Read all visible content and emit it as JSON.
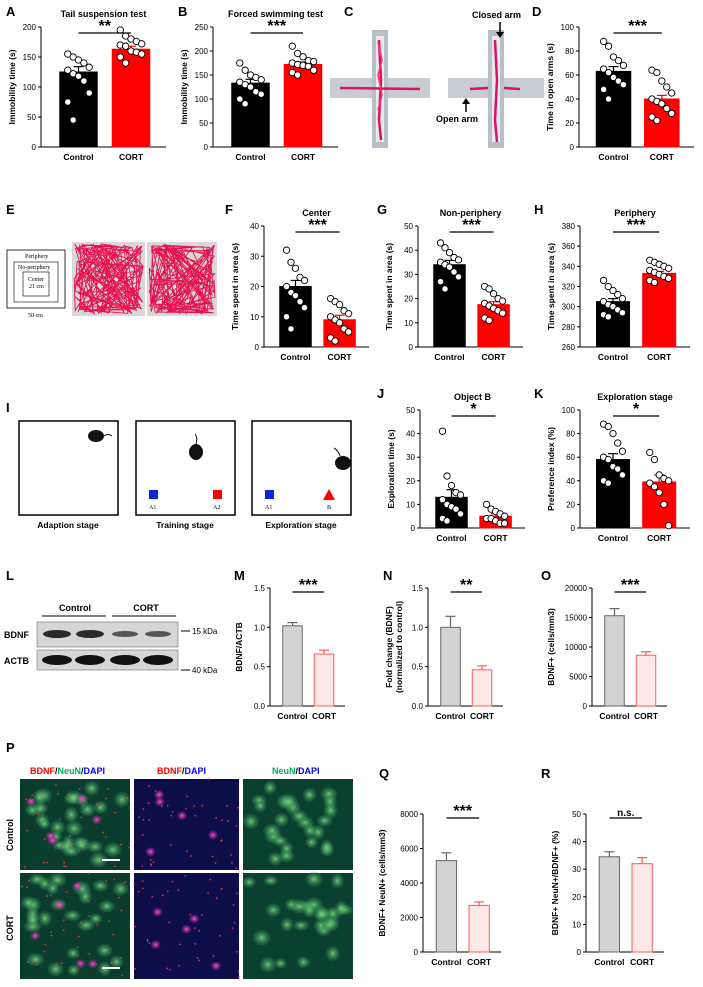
{
  "colors": {
    "control": "#000000",
    "cort": "#ff0000",
    "control_light": "#d3d3d3",
    "cort_light": "#ffe8e8",
    "cort_edge": "#ff5a5a"
  },
  "labels": {
    "A": "A",
    "B": "B",
    "C": "C",
    "D": "D",
    "E": "E",
    "F": "F",
    "G": "G",
    "H": "H",
    "I": "I",
    "J": "J",
    "K": "K",
    "L": "L",
    "M": "M",
    "N": "N",
    "O": "O",
    "P": "P",
    "Q": "Q",
    "R": "R"
  },
  "maze": {
    "closed_arm": "Closed arm",
    "open_arm": "Open arm"
  },
  "openfield": {
    "periphery": "Periphery",
    "non_periphery": "No-periphery",
    "center": "Center",
    "center_size": "21 cm",
    "arena_size": "50 cm"
  },
  "nor": {
    "stages": [
      "Adaption stage",
      "Training stage",
      "Exploration stage"
    ],
    "training_objects": [
      "A1",
      "A2"
    ],
    "exploration_objects": [
      "A1",
      "B"
    ]
  },
  "western": {
    "groups": [
      "Control",
      "CORT"
    ],
    "bands": [
      "BDNF",
      "ACTB"
    ],
    "markers": [
      "15 kDa",
      "40 kDa"
    ]
  },
  "micrographs": {
    "columns": [
      {
        "parts": [
          "BDNF",
          "/",
          "NeuN",
          "/",
          "DAPI"
        ]
      },
      {
        "parts": [
          "BDNF",
          "/",
          "DAPI"
        ]
      },
      {
        "parts": [
          "NeuN",
          "/",
          "DAPI"
        ]
      }
    ],
    "rows": [
      "Control",
      "CORT"
    ]
  },
  "chart_data": [
    {
      "id": "A",
      "type": "bar",
      "title": "Tail suspension test",
      "categories": [
        "Control",
        "CORT"
      ],
      "values": [
        125,
        163
      ],
      "sem": [
        9,
        5
      ],
      "points": [
        [
          155,
          150,
          145,
          140,
          133,
          128,
          122,
          118,
          110,
          90,
          75,
          45
        ],
        [
          195,
          185,
          180,
          176,
          172,
          170,
          168,
          160,
          158,
          155,
          150,
          140
        ]
      ],
      "ylabel": "Immobility time (s)",
      "ylim": [
        0,
        200
      ],
      "yticks": [
        0,
        50,
        100,
        150,
        200
      ],
      "sig": "**",
      "style": "solid"
    },
    {
      "id": "B",
      "type": "bar",
      "title": "Forced swimming test",
      "categories": [
        "Control",
        "CORT"
      ],
      "values": [
        133,
        172
      ],
      "sem": [
        8,
        5
      ],
      "points": [
        [
          175,
          160,
          150,
          145,
          140,
          135,
          130,
          125,
          115,
          110,
          100,
          90
        ],
        [
          210,
          195,
          188,
          180,
          178,
          175,
          172,
          170,
          168,
          160,
          155,
          150
        ]
      ],
      "ylabel": "Immobility time (s)",
      "ylim": [
        0,
        250
      ],
      "yticks": [
        0,
        50,
        100,
        150,
        200,
        250
      ],
      "sig": "***",
      "style": "solid"
    },
    {
      "id": "D",
      "type": "bar",
      "title": "",
      "categories": [
        "Control",
        "CORT"
      ],
      "values": [
        63,
        40
      ],
      "sem": [
        4,
        3
      ],
      "points": [
        [
          88,
          84,
          75,
          72,
          68,
          65,
          62,
          58,
          55,
          52,
          48,
          40
        ],
        [
          64,
          62,
          55,
          50,
          45,
          40,
          38,
          36,
          32,
          28,
          25,
          22
        ]
      ],
      "ylabel": "Time in open arms (s)",
      "ylim": [
        0,
        100
      ],
      "yticks": [
        0,
        20,
        40,
        60,
        80,
        100
      ],
      "sig": "***",
      "style": "solid"
    },
    {
      "id": "F",
      "type": "bar",
      "title": "Center",
      "categories": [
        "Control",
        "CORT"
      ],
      "values": [
        20,
        9
      ],
      "sem": [
        2,
        1.5
      ],
      "points": [
        [
          32,
          28,
          26,
          23,
          22,
          20,
          18,
          17,
          15,
          13,
          10,
          6
        ],
        [
          16,
          15,
          14,
          12,
          11,
          10,
          9,
          8,
          6,
          5,
          3,
          2
        ]
      ],
      "ylabel": "Time spent in area (s)",
      "ylim": [
        0,
        40
      ],
      "yticks": [
        0,
        10,
        20,
        30,
        40
      ],
      "sig": "***",
      "style": "solid"
    },
    {
      "id": "G",
      "type": "bar",
      "title": "Non-periphery",
      "categories": [
        "Control",
        "CORT"
      ],
      "values": [
        34,
        17.5
      ],
      "sem": [
        1.8,
        1.2
      ],
      "points": [
        [
          43,
          41,
          39,
          37,
          36,
          35,
          34,
          33,
          31,
          29,
          27,
          24
        ],
        [
          25,
          24,
          22,
          20,
          19,
          18,
          17,
          16,
          15,
          14,
          12,
          11
        ]
      ],
      "ylabel": "Time spent in area (s)",
      "ylim": [
        0,
        50
      ],
      "yticks": [
        0,
        10,
        20,
        30,
        40,
        50
      ],
      "sig": "***",
      "style": "solid"
    },
    {
      "id": "H",
      "type": "bar",
      "title": "Periphery",
      "categories": [
        "Control",
        "CORT"
      ],
      "values": [
        305,
        333
      ],
      "sem": [
        3,
        2
      ],
      "points": [
        [
          326,
          320,
          316,
          312,
          308,
          305,
          302,
          300,
          297,
          294,
          292,
          290
        ],
        [
          346,
          344,
          342,
          340,
          338,
          336,
          334,
          332,
          330,
          328,
          326,
          324
        ]
      ],
      "ylabel": "Time spent in area (s)",
      "ylim": [
        260,
        380
      ],
      "yticks": [
        260,
        280,
        300,
        320,
        340,
        360,
        380
      ],
      "sig": "***",
      "style": "solid"
    },
    {
      "id": "J",
      "type": "bar",
      "title": "Object B",
      "categories": [
        "Control",
        "CORT"
      ],
      "values": [
        13,
        5
      ],
      "sem": [
        3.2,
        1
      ],
      "points": [
        [
          41,
          22,
          18,
          15,
          14,
          12,
          10,
          9,
          8,
          6,
          4,
          3
        ],
        [
          10,
          8,
          7,
          6,
          5,
          4,
          4,
          3,
          2,
          2
        ]
      ],
      "ylabel": "Exploration time (s)",
      "ylim": [
        0,
        50
      ],
      "yticks": [
        0,
        10,
        20,
        30,
        40,
        50
      ],
      "sig": "*",
      "style": "solid"
    },
    {
      "id": "K",
      "type": "bar",
      "title": "Exploration stage",
      "categories": [
        "Control",
        "CORT"
      ],
      "values": [
        58,
        39
      ],
      "sem": [
        5,
        6
      ],
      "points": [
        [
          88,
          86,
          80,
          72,
          65,
          60,
          58,
          52,
          50,
          45,
          40,
          38
        ],
        [
          64,
          58,
          45,
          42,
          40,
          38,
          35,
          30,
          20,
          2
        ]
      ],
      "ylabel": "Preference index (%)",
      "ylim": [
        0,
        100
      ],
      "yticks": [
        0,
        20,
        40,
        60,
        80,
        100
      ],
      "sig": "*",
      "style": "solid"
    },
    {
      "id": "M",
      "type": "bar",
      "title": "",
      "categories": [
        "Control",
        "CORT"
      ],
      "values": [
        1.02,
        0.66
      ],
      "sem": [
        0.04,
        0.05
      ],
      "ylabel": "BDNF/ACTB",
      "ylim": [
        0,
        1.5
      ],
      "yticks": [
        "0.0",
        "0.5",
        "1.0",
        "1.5"
      ],
      "sig": "***",
      "style": "light"
    },
    {
      "id": "N",
      "type": "bar",
      "title": "",
      "categories": [
        "Control",
        "CORT"
      ],
      "values": [
        1.0,
        0.46
      ],
      "sem": [
        0.14,
        0.05
      ],
      "ylabel": "Fold change (BDNF)",
      "ylabel2": "(normalized to control)",
      "ylim": [
        0,
        1.5
      ],
      "yticks": [
        "0.0",
        "0.5",
        "1.0",
        "1.5"
      ],
      "sig": "**",
      "style": "light"
    },
    {
      "id": "O",
      "type": "bar",
      "title": "",
      "categories": [
        "Control",
        "CORT"
      ],
      "values": [
        15300,
        8600
      ],
      "sem": [
        1200,
        600
      ],
      "ylabel": "BDNF+ (cells/mm3)",
      "ylim": [
        0,
        20000
      ],
      "yticks": [
        0,
        5000,
        10000,
        15000,
        20000
      ],
      "sig": "***",
      "style": "light"
    },
    {
      "id": "Q",
      "type": "bar",
      "title": "",
      "categories": [
        "Control",
        "CORT"
      ],
      "values": [
        5300,
        2700
      ],
      "sem": [
        450,
        200
      ],
      "ylabel": "BDNF+ NeuN+ (cells/mm3)",
      "ylim": [
        0,
        8000
      ],
      "yticks": [
        0,
        2000,
        4000,
        6000,
        8000
      ],
      "sig": "***",
      "style": "light"
    },
    {
      "id": "R",
      "type": "bar",
      "title": "",
      "categories": [
        "Control",
        "CORT"
      ],
      "values": [
        34.5,
        32
      ],
      "sem": [
        1.8,
        2.2
      ],
      "ylabel": "BDNF+ NeuN+/BDNF+ (%)",
      "ylim": [
        0,
        50
      ],
      "yticks": [
        0,
        10,
        20,
        30,
        40,
        50
      ],
      "sig": "n.s.",
      "style": "light"
    }
  ]
}
